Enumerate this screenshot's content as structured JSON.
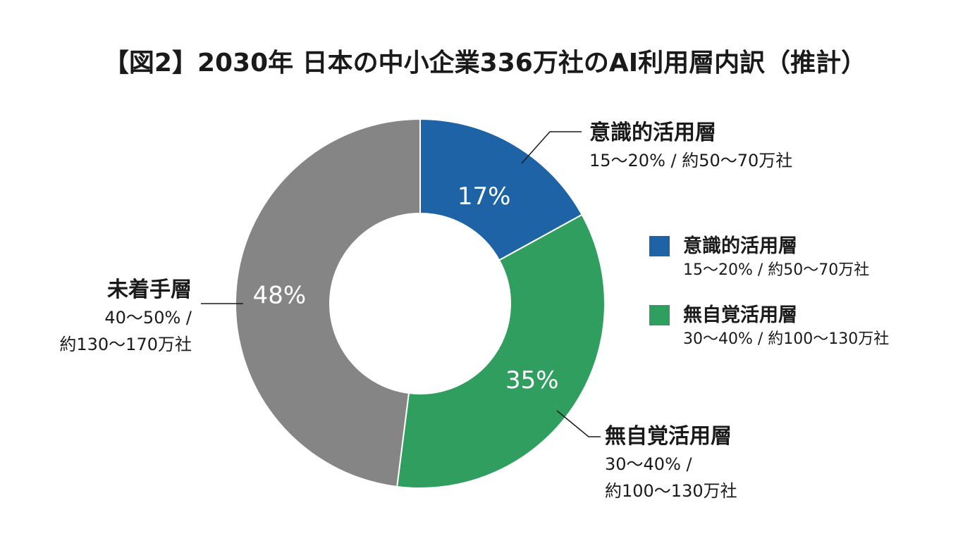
{
  "title": "【図2】2030年 日本の中小企業336万社のAI利用層内訳（推計）",
  "chart_data": {
    "type": "pie",
    "donut": true,
    "title": "【図2】2030年 日本の中小企業336万社のAI利用層内訳（推計）",
    "slices": [
      {
        "name": "意識的活用層",
        "value": 17,
        "display": "17%",
        "range": "15〜20% / 約50〜70万社",
        "range_lines": [
          "15〜20% / 約50〜70万社"
        ],
        "color": "#1d63a5"
      },
      {
        "name": "無自覚活用層",
        "value": 35,
        "display": "35%",
        "range": "30〜40% / 約100〜130万社",
        "range_lines": [
          "30〜40% /",
          "約100〜130万社"
        ],
        "color": "#2f9e5f"
      },
      {
        "name": "未着手層",
        "value": 48,
        "display": "48%",
        "range": "40〜50% / 約130〜170万社",
        "range_lines": [
          "40〜50% /",
          "約130〜170万社"
        ],
        "color": "#858585"
      }
    ],
    "legend": {
      "placement": "right",
      "items": [
        {
          "name": "意識的活用層",
          "detail": "15〜20% / 約50〜70万社",
          "color": "#1d63a5"
        },
        {
          "name": "無自覚活用層",
          "detail": "30〜40% / 約100〜130万社",
          "color": "#2f9e5f"
        }
      ]
    }
  }
}
